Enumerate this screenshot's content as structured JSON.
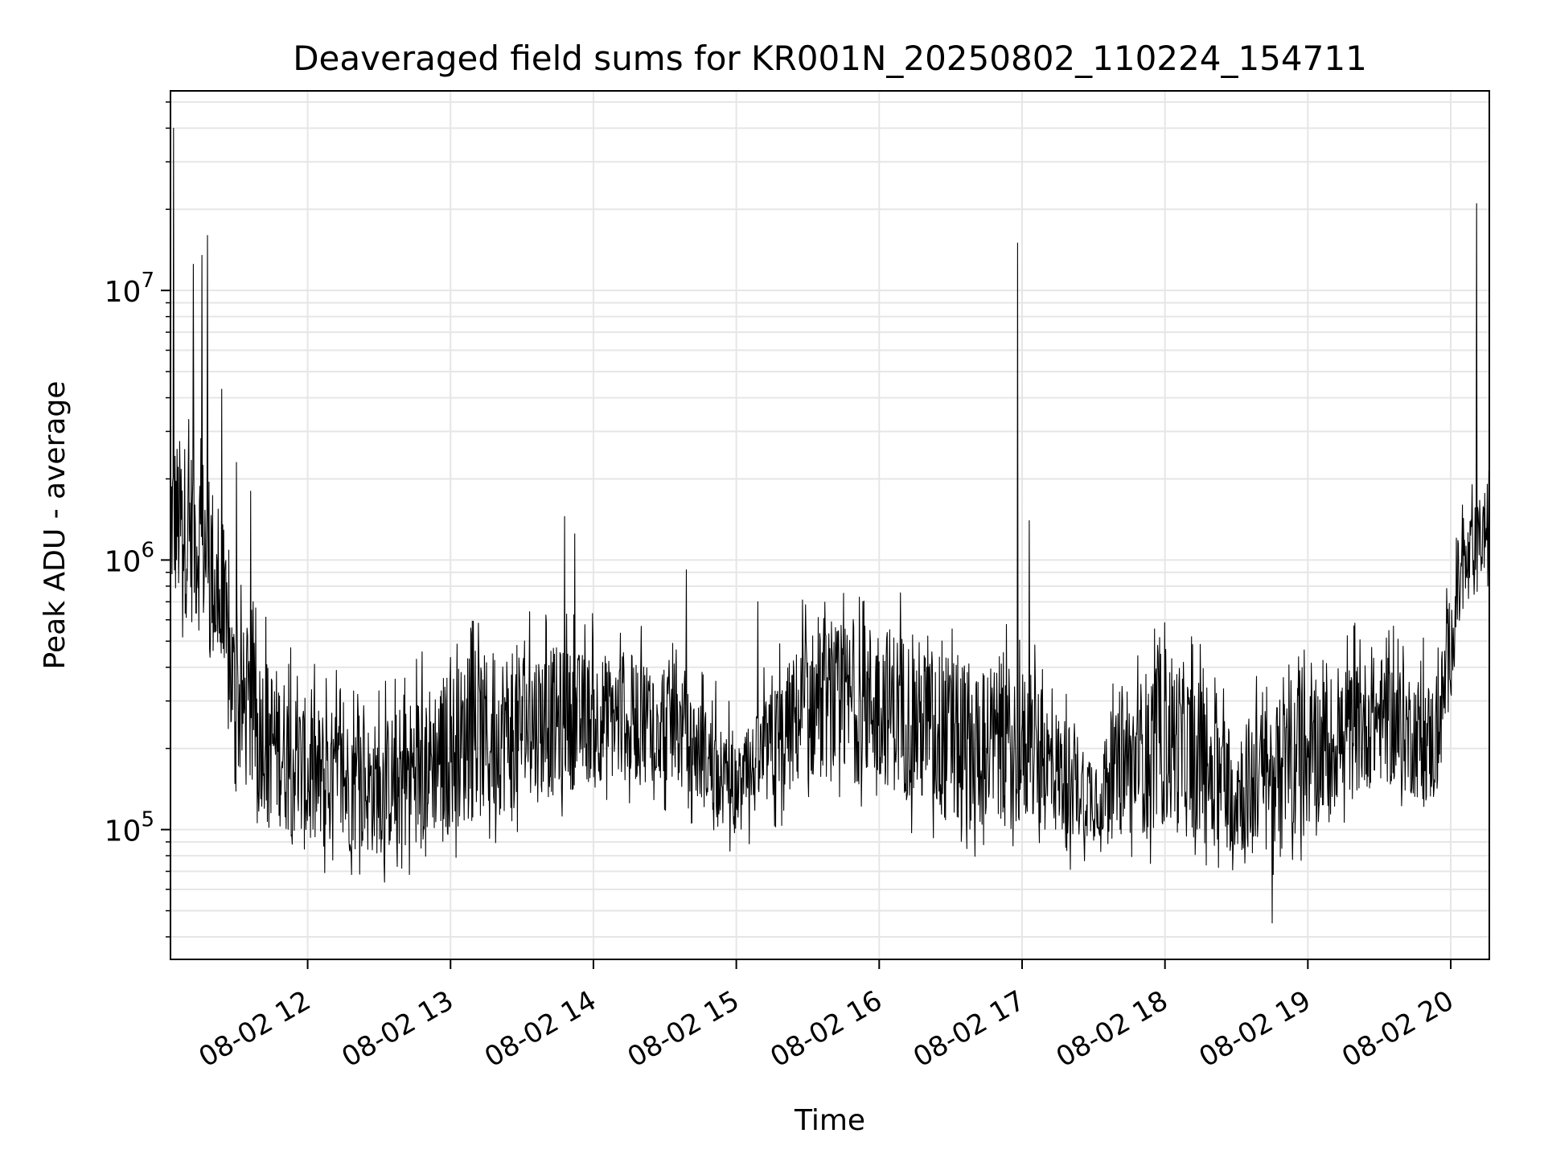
{
  "chart_data": {
    "type": "line",
    "title": "Deaveraged field sums for KR001N_20250802_110224_154711",
    "xlabel": "Time",
    "ylabel": "Peak ADU - average",
    "yscale": "log",
    "xlim_hours": [
      11.04,
      20.27
    ],
    "ylim": [
      33000,
      55000000
    ],
    "grid": true,
    "line_color": "#000000",
    "grid_color": "#e6e6e6",
    "x_ticks": [
      {
        "hour": 12,
        "label": "08-02 12"
      },
      {
        "hour": 13,
        "label": "08-02 13"
      },
      {
        "hour": 14,
        "label": "08-02 14"
      },
      {
        "hour": 15,
        "label": "08-02 15"
      },
      {
        "hour": 16,
        "label": "08-02 16"
      },
      {
        "hour": 17,
        "label": "08-02 17"
      },
      {
        "hour": 18,
        "label": "08-02 18"
      },
      {
        "hour": 19,
        "label": "08-02 19"
      },
      {
        "hour": 20,
        "label": "08-02 20"
      }
    ],
    "y_ticks": [
      {
        "value": 100000,
        "base": "10",
        "exp": "5"
      },
      {
        "value": 1000000,
        "base": "10",
        "exp": "6"
      },
      {
        "value": 10000000,
        "base": "10",
        "exp": "7"
      }
    ],
    "envelope": [
      {
        "hour": 11.04,
        "low": 700000,
        "high": 3000000
      },
      {
        "hour": 11.3,
        "low": 500000,
        "high": 2500000
      },
      {
        "hour": 11.5,
        "low": 150000,
        "high": 600000
      },
      {
        "hour": 12.0,
        "low": 80000,
        "high": 300000
      },
      {
        "hour": 12.5,
        "low": 80000,
        "high": 250000
      },
      {
        "hour": 13.0,
        "low": 100000,
        "high": 400000
      },
      {
        "hour": 13.5,
        "low": 120000,
        "high": 500000
      },
      {
        "hour": 14.0,
        "low": 150000,
        "high": 450000
      },
      {
        "hour": 14.5,
        "low": 150000,
        "high": 450000
      },
      {
        "hour": 15.0,
        "low": 100000,
        "high": 200000
      },
      {
        "hour": 15.5,
        "low": 150000,
        "high": 550000
      },
      {
        "hour": 16.0,
        "low": 150000,
        "high": 600000
      },
      {
        "hour": 16.5,
        "low": 100000,
        "high": 450000
      },
      {
        "hour": 17.0,
        "low": 100000,
        "high": 400000
      },
      {
        "hour": 17.5,
        "low": 90000,
        "high": 200000
      },
      {
        "hour": 18.0,
        "low": 100000,
        "high": 500000
      },
      {
        "hour": 18.5,
        "low": 80000,
        "high": 250000
      },
      {
        "hour": 19.0,
        "low": 100000,
        "high": 350000
      },
      {
        "hour": 19.5,
        "low": 150000,
        "high": 450000
      },
      {
        "hour": 19.9,
        "low": 120000,
        "high": 350000
      },
      {
        "hour": 20.05,
        "low": 500000,
        "high": 1200000
      },
      {
        "hour": 20.27,
        "low": 1000000,
        "high": 2000000
      }
    ],
    "spikes": [
      {
        "hour": 11.06,
        "value": 40000000
      },
      {
        "hour": 11.2,
        "value": 12500000
      },
      {
        "hour": 11.26,
        "value": 13500000
      },
      {
        "hour": 11.3,
        "value": 16000000
      },
      {
        "hour": 11.4,
        "value": 4300000
      },
      {
        "hour": 11.5,
        "value": 2300000
      },
      {
        "hour": 11.6,
        "value": 1800000
      },
      {
        "hour": 13.8,
        "value": 1450000
      },
      {
        "hour": 13.87,
        "value": 1250000
      },
      {
        "hour": 14.65,
        "value": 920000
      },
      {
        "hour": 15.15,
        "value": 700000
      },
      {
        "hour": 16.97,
        "value": 15000000
      },
      {
        "hour": 17.05,
        "value": 1400000
      },
      {
        "hour": 18.75,
        "value": 45000
      },
      {
        "hour": 20.18,
        "value": 21000000
      }
    ]
  }
}
